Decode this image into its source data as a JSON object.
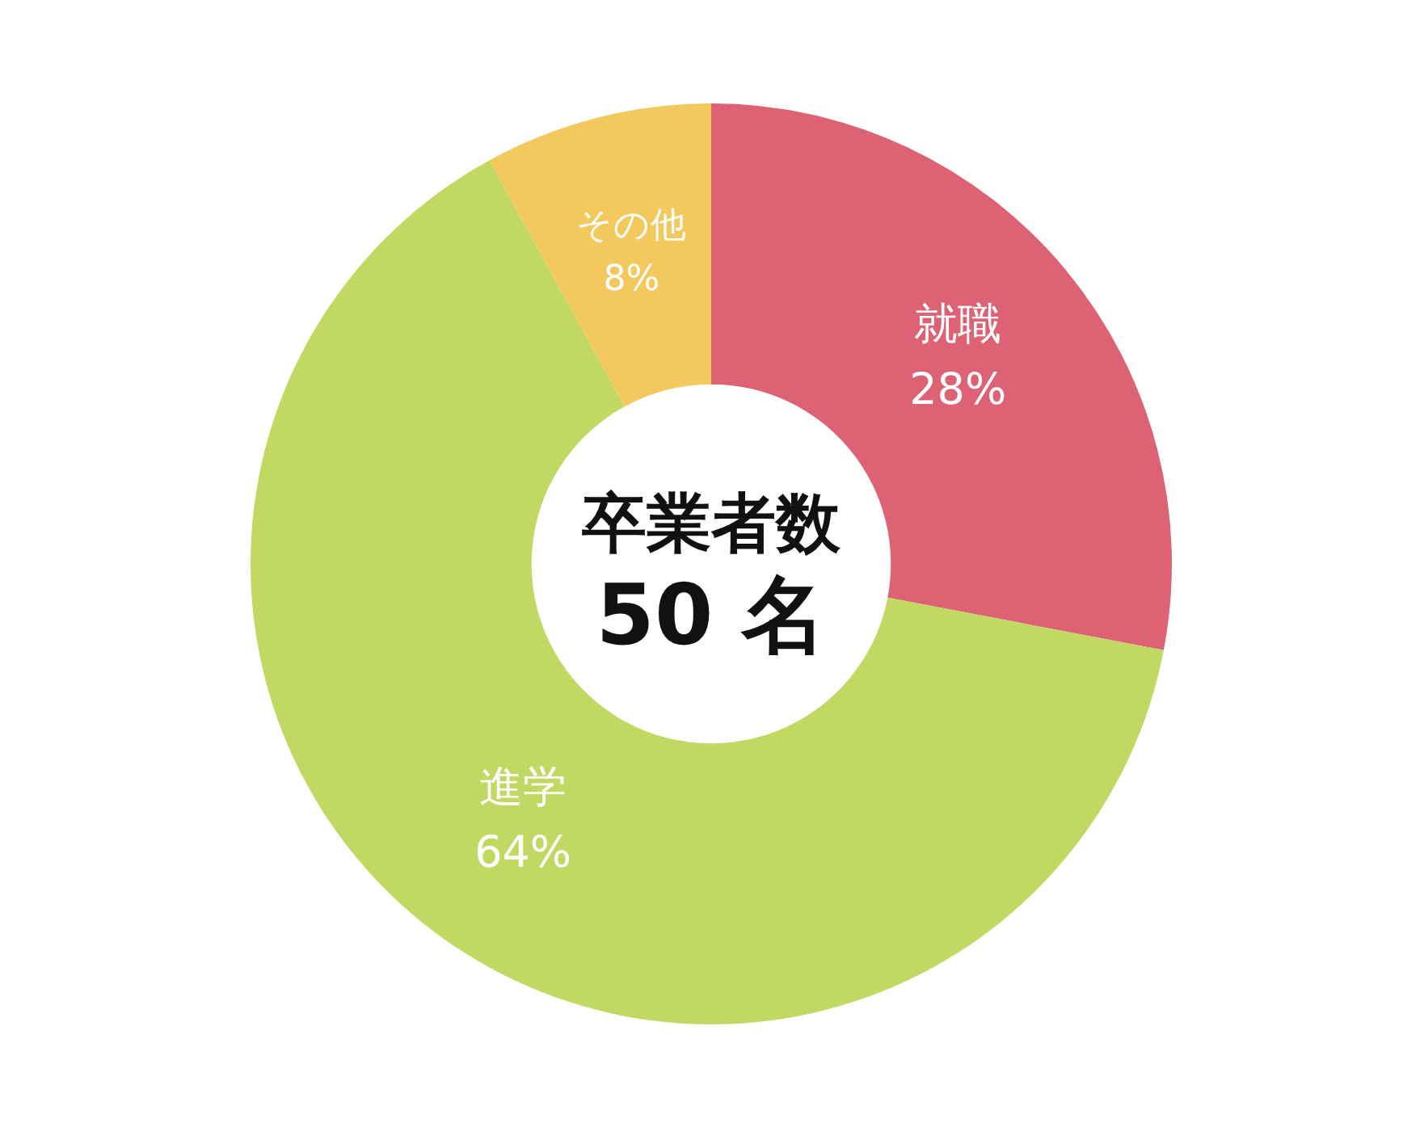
{
  "chart_data": {
    "type": "donut",
    "categories": [
      "就職",
      "進学",
      "その他"
    ],
    "values": [
      28,
      64,
      8
    ],
    "value_labels": [
      "28%",
      "64%",
      "8%"
    ],
    "colors": [
      "#dc6274",
      "#c1d862",
      "#f3c85c"
    ],
    "annotations": [
      "卒業者数",
      "50 名"
    ],
    "legend": false
  }
}
